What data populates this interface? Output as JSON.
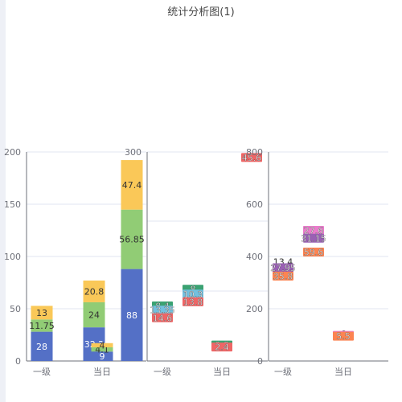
{
  "chart_data": {
    "type": "bar",
    "title": "统计分析图(1)",
    "panels": [
      {
        "name": "panel-1",
        "categories": [
          "一级",
          "",
          "当日",
          ""
        ],
        "y_ticks": [
          "200",
          "150",
          "100",
          "50",
          "0"
        ],
        "ylim": [
          0,
          200
        ],
        "stacks": [
          {
            "category_index": 0,
            "segments": [
              {
                "value": 28,
                "label": "28",
                "color": "#5470c6"
              },
              {
                "value": 11.75,
                "label": "11.75",
                "color": "#91cc75"
              },
              {
                "value": 13,
                "label": "13",
                "color": "#fac858"
              }
            ]
          },
          {
            "category_index": 1,
            "segments": [
              {
                "value": 32.2,
                "label": "32.2",
                "color": "#5470c6"
              },
              {
                "value": 24,
                "label": "24",
                "color": "#91cc75"
              },
              {
                "value": 20.8,
                "label": "20.8",
                "color": "#fac858"
              }
            ]
          },
          {
            "category_index": 2,
            "segments": [
              {
                "value": 9,
                "label": "9",
                "color": "#5470c6"
              },
              {
                "value": 4.1,
                "label": "4.1",
                "color": "#91cc75"
              },
              {
                "value": 4,
                "label": "4",
                "color": "#fac858"
              }
            ]
          },
          {
            "category_index": 3,
            "segments": [
              {
                "value": 88,
                "label": "88",
                "color": "#5470c6"
              },
              {
                "value": 56.85,
                "label": "56.85",
                "color": "#91cc75"
              },
              {
                "value": 47.4,
                "label": "47.4",
                "color": "#fac858"
              }
            ]
          }
        ]
      },
      {
        "name": "panel-2",
        "categories": [
          "一级",
          "",
          "当日",
          ""
        ],
        "y_ticks": [
          "300"
        ],
        "ylim": [
          0,
          300
        ],
        "markers": [
          {
            "category_index": 0,
            "value": 79,
            "label": "8.4",
            "color": "#3ba272"
          },
          {
            "category_index": 0,
            "value": 73,
            "label": "13.35",
            "color": "#73c0de"
          },
          {
            "category_index": 0,
            "value": 62,
            "label": "14.6",
            "color": "#ee6666"
          },
          {
            "category_index": 1,
            "value": 103,
            "label": "8",
            "color": "#3ba272"
          },
          {
            "category_index": 1,
            "value": 96,
            "label": "10.3",
            "color": "#73c0de"
          },
          {
            "category_index": 1,
            "value": 85,
            "label": "13.8",
            "color": "#ee6666"
          },
          {
            "category_index": 2,
            "value": 23,
            "label": "0.8",
            "color": "#3ba272"
          },
          {
            "category_index": 2,
            "value": 20,
            "label": "2.4",
            "color": "#ee6666"
          },
          {
            "category_index": 3,
            "value": 292,
            "label": "45.6",
            "color": "#ee6666"
          }
        ]
      },
      {
        "name": "panel-3",
        "categories": [
          "一级",
          "",
          "当日",
          ""
        ],
        "y_ticks": [
          "800",
          "600",
          "400",
          "200",
          "0"
        ],
        "ylim": [
          0,
          800
        ],
        "markers": [
          {
            "category_index": 0,
            "value": 380,
            "label": "13.4",
            "color": "#ffffff",
            "text_color": "#333333"
          },
          {
            "category_index": 0,
            "value": 357,
            "label": "27.95",
            "color": "#9a60b4"
          },
          {
            "category_index": 0,
            "value": 325,
            "label": "35.8",
            "color": "#fc8452"
          },
          {
            "category_index": 1,
            "value": 500,
            "label": "27.6",
            "color": "#ea7ccc"
          },
          {
            "category_index": 1,
            "value": 470,
            "label": "31.15",
            "color": "#9a60b4"
          },
          {
            "category_index": 1,
            "value": 417,
            "label": "59.6",
            "color": "#fc8452"
          },
          {
            "category_index": 2,
            "value": 104,
            "label": "6",
            "color": "#ffffff",
            "text_color": "#333333"
          },
          {
            "category_index": 2,
            "value": 98,
            "label": "8.5",
            "color": "#ea7ccc"
          },
          {
            "category_index": 2,
            "value": 95,
            "label": "5.5",
            "color": "#fc8452"
          }
        ]
      }
    ]
  }
}
